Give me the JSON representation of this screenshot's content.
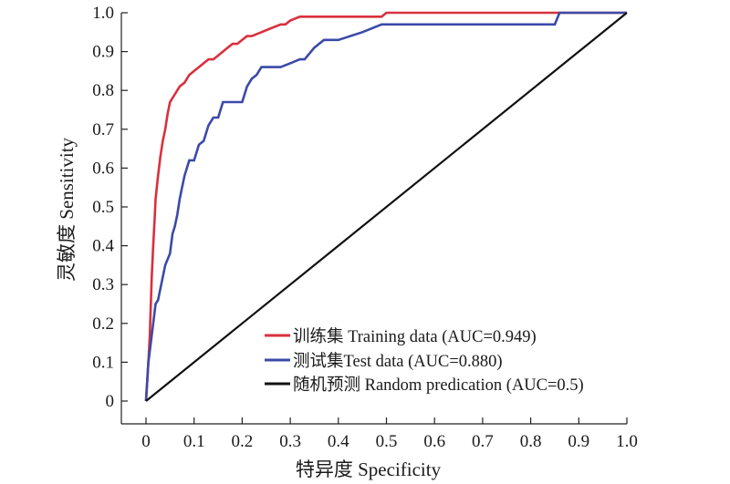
{
  "chart_data": {
    "type": "line",
    "xlabel": "特异度 Specificity",
    "ylabel": "灵敏度 Sensitivity",
    "xlim": [
      0,
      1.0
    ],
    "ylim": [
      0,
      1.0
    ],
    "x_ticks": [
      "0",
      "0.1",
      "0.2",
      "0.3",
      "0.4",
      "0.5",
      "0.6",
      "0.7",
      "0.8",
      "0.9",
      "1.0"
    ],
    "y_ticks": [
      "0",
      "0.1",
      "0.2",
      "0.3",
      "0.4",
      "0.5",
      "0.6",
      "0.7",
      "0.8",
      "0.9",
      "1.0"
    ],
    "grid": false,
    "legend_position": "bottom-right",
    "series": [
      {
        "name": "训练集 Training data (AUC=0.949)",
        "color": "#d9303e",
        "x": [
          0,
          0.005,
          0.008,
          0.01,
          0.012,
          0.015,
          0.018,
          0.02,
          0.025,
          0.03,
          0.035,
          0.04,
          0.045,
          0.05,
          0.055,
          0.06,
          0.07,
          0.08,
          0.09,
          0.1,
          0.11,
          0.12,
          0.13,
          0.14,
          0.15,
          0.16,
          0.17,
          0.18,
          0.19,
          0.2,
          0.21,
          0.22,
          0.24,
          0.26,
          0.28,
          0.29,
          0.3,
          0.32,
          0.35,
          0.4,
          0.45,
          0.49,
          0.5,
          0.6,
          0.7,
          0.8,
          0.85,
          0.86,
          0.9,
          1.0
        ],
        "y": [
          0,
          0.1,
          0.17,
          0.25,
          0.32,
          0.4,
          0.47,
          0.52,
          0.58,
          0.63,
          0.67,
          0.7,
          0.74,
          0.77,
          0.78,
          0.79,
          0.81,
          0.82,
          0.84,
          0.85,
          0.86,
          0.87,
          0.88,
          0.88,
          0.89,
          0.9,
          0.91,
          0.92,
          0.92,
          0.93,
          0.94,
          0.94,
          0.95,
          0.96,
          0.97,
          0.97,
          0.98,
          0.99,
          0.99,
          0.99,
          0.99,
          0.99,
          1.0,
          1.0,
          1.0,
          1.0,
          1.0,
          1.0,
          1.0,
          1.0
        ]
      },
      {
        "name": "测试集Test data (AUC=0.880)",
        "color": "#3b4aa8",
        "x": [
          0,
          0.005,
          0.01,
          0.015,
          0.02,
          0.025,
          0.03,
          0.04,
          0.05,
          0.055,
          0.06,
          0.065,
          0.07,
          0.075,
          0.08,
          0.09,
          0.1,
          0.11,
          0.12,
          0.13,
          0.14,
          0.15,
          0.16,
          0.18,
          0.2,
          0.21,
          0.22,
          0.23,
          0.24,
          0.26,
          0.28,
          0.3,
          0.32,
          0.33,
          0.35,
          0.37,
          0.4,
          0.45,
          0.49,
          0.6,
          0.7,
          0.8,
          0.85,
          0.86,
          0.9,
          1.0
        ],
        "y": [
          0,
          0.1,
          0.15,
          0.2,
          0.25,
          0.26,
          0.29,
          0.35,
          0.38,
          0.43,
          0.45,
          0.48,
          0.52,
          0.55,
          0.58,
          0.62,
          0.62,
          0.66,
          0.67,
          0.71,
          0.73,
          0.73,
          0.77,
          0.77,
          0.77,
          0.81,
          0.83,
          0.84,
          0.86,
          0.86,
          0.86,
          0.87,
          0.88,
          0.88,
          0.91,
          0.93,
          0.93,
          0.95,
          0.97,
          0.97,
          0.97,
          0.97,
          0.97,
          1.0,
          1.0,
          1.0
        ]
      },
      {
        "name": "随机预测 Random predication (AUC=0.5)",
        "color": "#111111",
        "x": [
          0,
          1.0
        ],
        "y": [
          0,
          1.0
        ]
      }
    ]
  }
}
